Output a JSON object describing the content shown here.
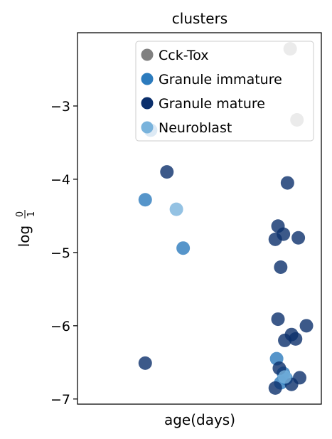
{
  "chart_data": {
    "type": "scatter",
    "title": "clusters",
    "xlabel": "age(days)",
    "ylabel": "log 0/1",
    "ylabel_parts": {
      "prefix": "log",
      "numerator": "0",
      "denominator": "1"
    },
    "ylim": [
      -7.07,
      -2.0
    ],
    "y_ticks": [
      -3,
      -4,
      -5,
      -6,
      -7
    ],
    "y_tick_labels": [
      "−3",
      "−4",
      "−5",
      "−6",
      "−7"
    ],
    "x_ticks": [],
    "xlim": [
      -0.6,
      1.2
    ],
    "grid": false,
    "legend_position": "top-right",
    "series": [
      {
        "name": "Cck-Tox",
        "color": "#808080",
        "points": [
          {
            "x": 0.97,
            "y": -2.22
          },
          {
            "x": 1.02,
            "y": -3.19
          }
        ]
      },
      {
        "name": "Granule immature",
        "color": "#2c7bbd",
        "points": [
          {
            "x": -0.06,
            "y": -3.33
          },
          {
            "x": -0.1,
            "y": -4.28
          },
          {
            "x": 0.18,
            "y": -4.94
          },
          {
            "x": 0.87,
            "y": -6.45
          },
          {
            "x": 0.92,
            "y": -6.65
          },
          {
            "x": 0.94,
            "y": -6.72
          },
          {
            "x": 0.9,
            "y": -6.78
          }
        ]
      },
      {
        "name": "Granule mature",
        "color": "#0b2f6b",
        "points": [
          {
            "x": 0.06,
            "y": -3.9
          },
          {
            "x": 0.95,
            "y": -4.05
          },
          {
            "x": 0.88,
            "y": -4.64
          },
          {
            "x": 0.92,
            "y": -4.75
          },
          {
            "x": 0.86,
            "y": -4.82
          },
          {
            "x": 1.03,
            "y": -4.8
          },
          {
            "x": 0.9,
            "y": -5.2
          },
          {
            "x": 0.88,
            "y": -5.91
          },
          {
            "x": 1.09,
            "y": -6.0
          },
          {
            "x": 0.98,
            "y": -6.12
          },
          {
            "x": 1.01,
            "y": -6.18
          },
          {
            "x": 0.93,
            "y": -6.2
          },
          {
            "x": -0.1,
            "y": -6.51
          },
          {
            "x": 0.89,
            "y": -6.58
          },
          {
            "x": 1.04,
            "y": -6.71
          },
          {
            "x": 0.86,
            "y": -6.85
          },
          {
            "x": 0.98,
            "y": -6.8
          }
        ]
      },
      {
        "name": "Neuroblast",
        "color": "#79b3dc",
        "points": [
          {
            "x": 0.13,
            "y": -4.41
          },
          {
            "x": 0.93,
            "y": -6.7
          }
        ]
      }
    ]
  }
}
